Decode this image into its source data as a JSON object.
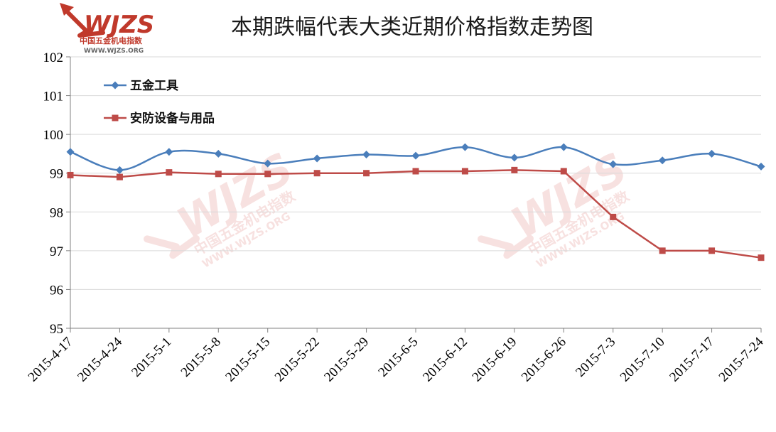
{
  "header": {
    "title": "本期跌幅代表大类近期价格指数走势图"
  },
  "logo": {
    "wordmark": "WJZS",
    "tagline": "中国五金机电指数",
    "url": "WWW.WJZS.ORG"
  },
  "watermark": {
    "wordmark": "WJZS",
    "tagline": "中国五金机电指数",
    "url": "WWW.WJZS.ORG"
  },
  "colors": {
    "series_0": "#4a7ebb",
    "series_1": "#be4b48",
    "grid": "#d9d9d9",
    "axis": "#808080",
    "logo_red": "#c0392b",
    "watermark": "#f2c9c7"
  },
  "chart_data": {
    "type": "line",
    "title": "本期跌幅代表大类近期价格指数走势图",
    "xlabel": "",
    "ylabel": "",
    "categories": [
      "2015-4-17",
      "2015-4-24",
      "2015-5-1",
      "2015-5-8",
      "2015-5-15",
      "2015-5-22",
      "2015-5-29",
      "2015-6-5",
      "2015-6-12",
      "2015-6-19",
      "2015-6-26",
      "2015-7-3",
      "2015-7-10",
      "2015-7-17",
      "2015-7-24"
    ],
    "ylim": [
      95,
      102
    ],
    "yticks": [
      95,
      96,
      97,
      98,
      99,
      100,
      101,
      102
    ],
    "grid": true,
    "legend_position": "top-left",
    "series": [
      {
        "name": "五金工具",
        "marker": "diamond",
        "smooth": true,
        "values": [
          99.55,
          99.08,
          99.55,
          99.5,
          99.25,
          99.38,
          99.48,
          99.45,
          99.67,
          99.4,
          99.67,
          99.23,
          99.33,
          99.5,
          99.17
        ]
      },
      {
        "name": "安防设备与用品",
        "marker": "square",
        "smooth": false,
        "values": [
          98.95,
          98.9,
          99.02,
          98.98,
          98.98,
          99.0,
          99.0,
          99.05,
          99.05,
          99.08,
          99.05,
          97.87,
          97.0,
          97.0,
          96.82
        ]
      }
    ]
  }
}
